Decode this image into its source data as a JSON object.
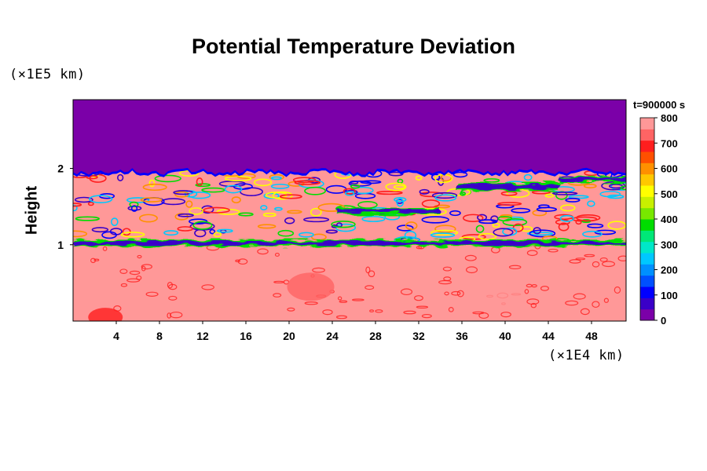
{
  "chart_data": {
    "type": "heatmap",
    "title": "Potential Temperature Deviation",
    "ylabel": "Height",
    "xlabel": "",
    "y_unit_label": "(×1E5 km)",
    "x_unit_label": "(×1E4 km)",
    "time_label": "t=900000 s",
    "xlim": [
      0,
      51.2
    ],
    "ylim": [
      0,
      2.9
    ],
    "x_ticks": [
      4,
      8,
      12,
      16,
      20,
      24,
      28,
      32,
      36,
      40,
      44,
      48
    ],
    "y_ticks": [
      1,
      2
    ],
    "colorbar": {
      "min": 0,
      "max": 800,
      "ticks": [
        0,
        100,
        200,
        300,
        400,
        500,
        600,
        700,
        800
      ],
      "colors": [
        "#7b00a8",
        "#3a00c8",
        "#0000ff",
        "#0050ff",
        "#0090ff",
        "#00c8ff",
        "#00e8c8",
        "#00e878",
        "#00dd00",
        "#78e800",
        "#c8f000",
        "#ffff00",
        "#ffc800",
        "#ff9000",
        "#ff5000",
        "#ff1e1e",
        "#ff6464",
        "#ff9898"
      ]
    },
    "regions": {
      "upper_top": 2.9,
      "upper_bottom": 1.96,
      "upper_value": 0,
      "lower_value": 800,
      "dark_bands": [
        {
          "x": [
            0,
            51.2
          ],
          "y": 1.02,
          "thickness": 0.05,
          "value": 50
        },
        {
          "x": [
            24.5,
            34
          ],
          "y": 1.44,
          "thickness": 0.05,
          "value": 50
        },
        {
          "x": [
            35.5,
            45
          ],
          "y": 1.76,
          "thickness": 0.07,
          "value": 50
        },
        {
          "x": [
            45,
            51.2
          ],
          "y": 1.86,
          "thickness": 0.05,
          "value": 50
        }
      ],
      "hot_patches": [
        {
          "x": 22,
          "y": 0.45,
          "value": 720
        },
        {
          "x": 40,
          "y": 0.32,
          "value": 770
        },
        {
          "x": 3,
          "y": 0.05,
          "value": 700
        }
      ]
    }
  }
}
